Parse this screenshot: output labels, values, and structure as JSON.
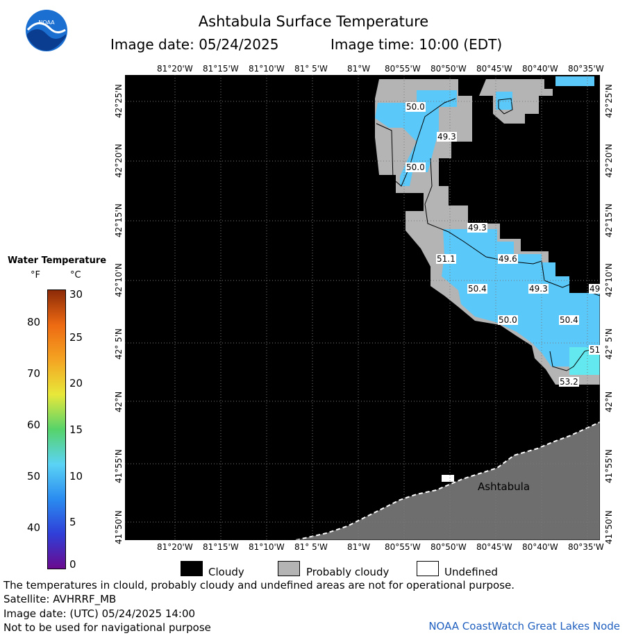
{
  "header": {
    "title": "Ashtabula Surface Temperature",
    "date_text": "Image date: 05/24/2025",
    "time_text": "Image time: 10:00 (EDT)"
  },
  "logo": {
    "text": "NOAA"
  },
  "map": {
    "lon_labels": [
      "81°20'W",
      "81°15'W",
      "81°10'W",
      "81° 5'W",
      "81°W",
      "80°55'W",
      "80°50'W",
      "80°45'W",
      "80°40'W",
      "80°35'W"
    ],
    "lat_labels": [
      "42°25'N",
      "42°20'N",
      "42°15'N",
      "42°10'N",
      "42° 5'N",
      "42°N",
      "41°55'N",
      "41°50'N"
    ],
    "place_label": "Ashtabula",
    "sst_labels": [
      "50.0",
      "49.3",
      "50.0",
      "49.3",
      "51.1",
      "49.6",
      "50.4",
      "49.3",
      "49",
      "50.0",
      "50.4",
      "51",
      "53.2"
    ]
  },
  "legend": {
    "title": "Water Temperature",
    "unit_f": "°F",
    "unit_c": "°C",
    "f_ticks": [
      "80",
      "70",
      "60",
      "50",
      "40"
    ],
    "c_ticks": [
      "30",
      "25",
      "20",
      "15",
      "10",
      "5",
      "0"
    ],
    "colors": [
      "#6a0a8f",
      "#2f3fd8",
      "#2a8cf0",
      "#5bd3f5",
      "#56d36a",
      "#e8e83a",
      "#f4a422",
      "#ee6a12",
      "#8c2a08"
    ]
  },
  "key": {
    "cloudy": "Cloudy",
    "probably_cloudy": "Probably cloudy",
    "undefined": "Undefined",
    "cloudy_color": "#000000",
    "probably_cloudy_color": "#b4b4b4",
    "undefined_color": "#ffffff"
  },
  "footer": {
    "line1": "The temperatures in clould, probably cloudy and undefined areas are not for operational purpose.",
    "line2": "Satellite: AVHRRF_MB",
    "line3": "Image date: (UTC) 05/24/2025  14:00",
    "line4": "Not to be used for navigational purpose",
    "credit": "NOAA CoastWatch Great Lakes Node"
  }
}
